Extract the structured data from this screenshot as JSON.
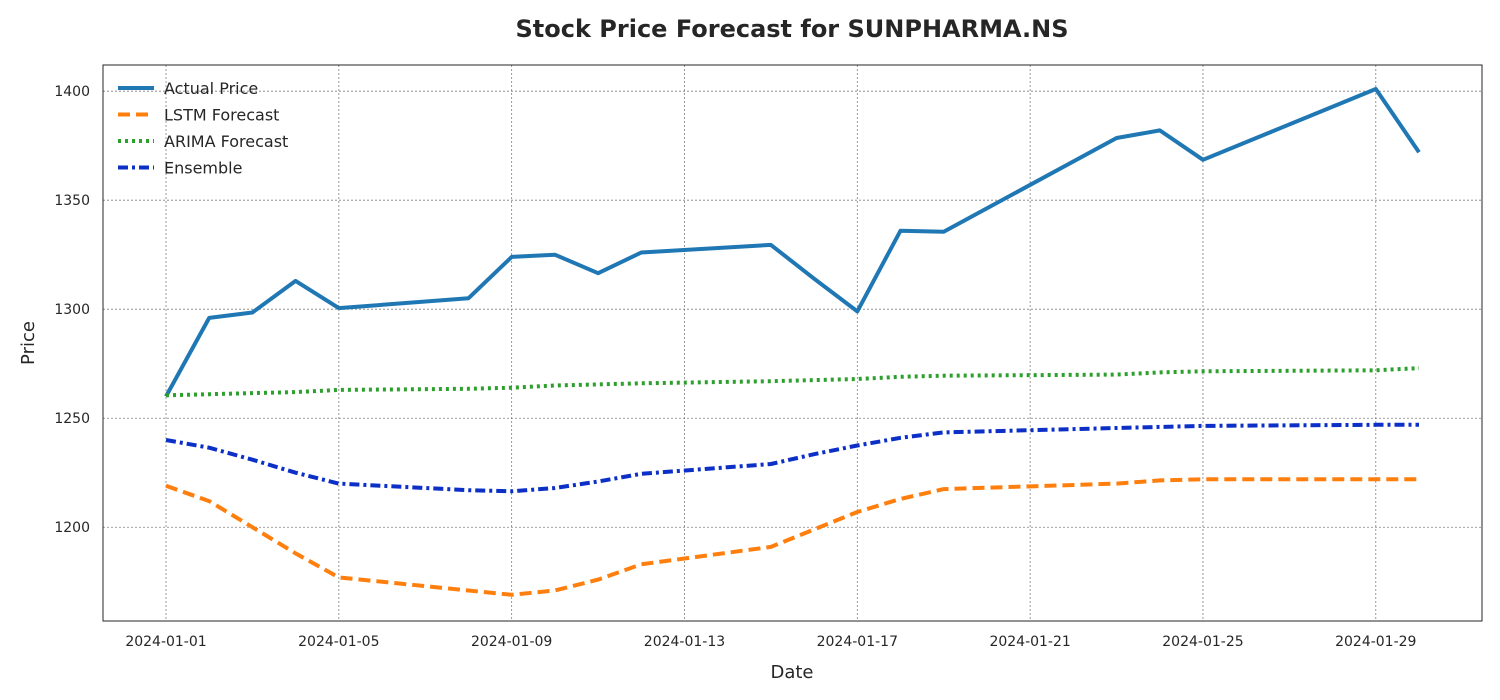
{
  "chart_data": {
    "type": "line",
    "title": "Stock Price Forecast for SUNPHARMA.NS",
    "xlabel": "Date",
    "ylabel": "Price",
    "xlim": [
      "2024-01-01",
      "2024-01-30"
    ],
    "ylim": [
      1157,
      1412
    ],
    "x_ticks": [
      "2024-01-01",
      "2024-01-05",
      "2024-01-09",
      "2024-01-13",
      "2024-01-17",
      "2024-01-21",
      "2024-01-25",
      "2024-01-29"
    ],
    "y_ticks": [
      1200,
      1250,
      1300,
      1350,
      1400
    ],
    "grid": true,
    "legend_position": "top-left",
    "series": [
      {
        "name": "Actual Price",
        "color": "#1f77b4",
        "style": "solid",
        "x": [
          "2024-01-01",
          "2024-01-02",
          "2024-01-03",
          "2024-01-04",
          "2024-01-05",
          "2024-01-08",
          "2024-01-09",
          "2024-01-10",
          "2024-01-11",
          "2024-01-12",
          "2024-01-15",
          "2024-01-16",
          "2024-01-17",
          "2024-01-18",
          "2024-01-19",
          "2024-01-23",
          "2024-01-24",
          "2024-01-25",
          "2024-01-29",
          "2024-01-30"
        ],
        "values": [
          1260,
          1296,
          1298.5,
          1313,
          1300.5,
          1305,
          1324,
          1325,
          1316.5,
          1326,
          1329.5,
          1314,
          1299,
          1336,
          1335.5,
          1378.5,
          1382,
          1368.5,
          1401,
          1372
        ]
      },
      {
        "name": "LSTM Forecast",
        "color": "#ff7f0e",
        "style": "dashed",
        "x": [
          "2024-01-01",
          "2024-01-02",
          "2024-01-03",
          "2024-01-04",
          "2024-01-05",
          "2024-01-08",
          "2024-01-09",
          "2024-01-10",
          "2024-01-11",
          "2024-01-12",
          "2024-01-15",
          "2024-01-16",
          "2024-01-17",
          "2024-01-18",
          "2024-01-19",
          "2024-01-23",
          "2024-01-24",
          "2024-01-25",
          "2024-01-29",
          "2024-01-30"
        ],
        "values": [
          1219,
          1212,
          1200,
          1188,
          1177,
          1171,
          1169,
          1171,
          1176,
          1183,
          1191,
          1199,
          1207,
          1213,
          1217.5,
          1220,
          1221.5,
          1222,
          1222,
          1222
        ]
      },
      {
        "name": "ARIMA Forecast",
        "color": "#2ca02c",
        "style": "dotted",
        "x": [
          "2024-01-01",
          "2024-01-02",
          "2024-01-03",
          "2024-01-04",
          "2024-01-05",
          "2024-01-08",
          "2024-01-09",
          "2024-01-10",
          "2024-01-11",
          "2024-01-12",
          "2024-01-15",
          "2024-01-16",
          "2024-01-17",
          "2024-01-18",
          "2024-01-19",
          "2024-01-23",
          "2024-01-24",
          "2024-01-25",
          "2024-01-29",
          "2024-01-30"
        ],
        "values": [
          1260.5,
          1261,
          1261.5,
          1262,
          1263,
          1263.5,
          1264,
          1265,
          1265.5,
          1266,
          1267,
          1267.5,
          1268,
          1269,
          1269.5,
          1270,
          1271,
          1271.5,
          1272,
          1273
        ]
      },
      {
        "name": "Ensemble",
        "color": "#0b2fc7",
        "style": "dashdot",
        "x": [
          "2024-01-01",
          "2024-01-02",
          "2024-01-03",
          "2024-01-04",
          "2024-01-05",
          "2024-01-08",
          "2024-01-09",
          "2024-01-10",
          "2024-01-11",
          "2024-01-12",
          "2024-01-15",
          "2024-01-16",
          "2024-01-17",
          "2024-01-18",
          "2024-01-19",
          "2024-01-23",
          "2024-01-24",
          "2024-01-25",
          "2024-01-29",
          "2024-01-30"
        ],
        "values": [
          1240,
          1236.5,
          1231,
          1225,
          1220,
          1217,
          1216.5,
          1218,
          1221,
          1224.5,
          1229,
          1233.5,
          1237.5,
          1241,
          1243.5,
          1245.5,
          1246,
          1246.5,
          1247,
          1247
        ]
      }
    ]
  }
}
